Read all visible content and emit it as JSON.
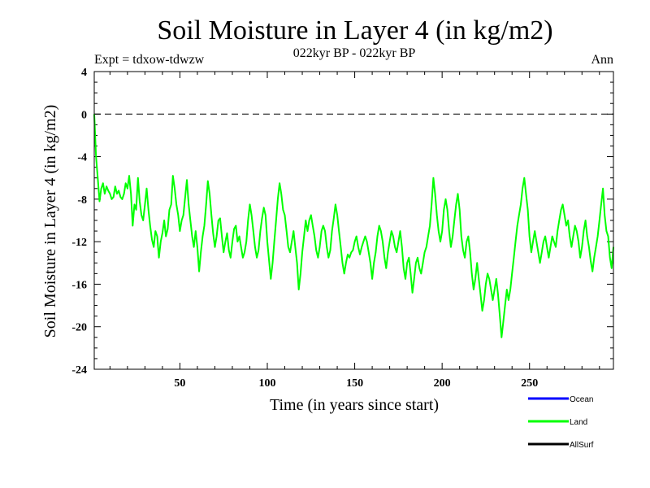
{
  "chart_data": {
    "type": "line",
    "title": "Soil Moisture in Layer 4 (in kg/m2)",
    "subtitle": "022kyr BP - 022kyr BP",
    "experiment_label": "Expt = tdxow-tdwzw",
    "period_label": "Ann",
    "xlabel": "Time (in years since start)",
    "ylabel": "Soil Moisture in Layer 4 (in kg/m2)",
    "xlim": [
      1,
      298
    ],
    "ylim": [
      -24,
      4
    ],
    "x_ticks": [
      50,
      100,
      150,
      200,
      250
    ],
    "y_ticks": [
      4,
      0,
      -4,
      -8,
      -12,
      -16,
      -20,
      -24
    ],
    "reference_line": {
      "y": 0,
      "style": "dashed"
    },
    "legend": [
      {
        "name": "Ocean",
        "color": "#0000ff"
      },
      {
        "name": "Land",
        "color": "#00ff00"
      },
      {
        "name": "AllSurf",
        "color": "#000000"
      }
    ],
    "legend_placement": "bottom-right",
    "series": [
      {
        "name": "Land",
        "color": "#00ff00",
        "x": [
          1,
          2,
          3,
          4,
          5,
          6,
          7,
          8,
          9,
          10,
          11,
          12,
          13,
          14,
          15,
          16,
          17,
          18,
          19,
          20,
          21,
          22,
          23,
          24,
          25,
          26,
          27,
          28,
          29,
          30,
          31,
          32,
          33,
          34,
          35,
          36,
          37,
          38,
          39,
          40,
          41,
          42,
          43,
          44,
          45,
          46,
          47,
          48,
          49,
          50,
          51,
          52,
          53,
          54,
          55,
          56,
          57,
          58,
          59,
          60,
          61,
          62,
          63,
          64,
          65,
          66,
          67,
          68,
          69,
          70,
          71,
          72,
          73,
          74,
          75,
          76,
          77,
          78,
          79,
          80,
          81,
          82,
          83,
          84,
          85,
          86,
          87,
          88,
          89,
          90,
          91,
          92,
          93,
          94,
          95,
          96,
          97,
          98,
          99,
          100,
          101,
          102,
          103,
          104,
          105,
          106,
          107,
          108,
          109,
          110,
          111,
          112,
          113,
          114,
          115,
          116,
          117,
          118,
          119,
          120,
          121,
          122,
          123,
          124,
          125,
          126,
          127,
          128,
          129,
          130,
          131,
          132,
          133,
          134,
          135,
          136,
          137,
          138,
          139,
          140,
          141,
          142,
          143,
          144,
          145,
          146,
          147,
          148,
          149,
          150,
          151,
          152,
          153,
          154,
          155,
          156,
          157,
          158,
          159,
          160,
          161,
          162,
          163,
          164,
          165,
          166,
          167,
          168,
          169,
          170,
          171,
          172,
          173,
          174,
          175,
          176,
          177,
          178,
          179,
          180,
          181,
          182,
          183,
          184,
          185,
          186,
          187,
          188,
          189,
          190,
          191,
          192,
          193,
          194,
          195,
          196,
          197,
          198,
          199,
          200,
          201,
          202,
          203,
          204,
          205,
          206,
          207,
          208,
          209,
          210,
          211,
          212,
          213,
          214,
          215,
          216,
          217,
          218,
          219,
          220,
          221,
          222,
          223,
          224,
          225,
          226,
          227,
          228,
          229,
          230,
          231,
          232,
          233,
          234,
          235,
          236,
          237,
          238,
          239,
          240,
          241,
          242,
          243,
          244,
          245,
          246,
          247,
          248,
          249,
          250,
          251,
          252,
          253,
          254,
          255,
          256,
          257,
          258,
          259,
          260,
          261,
          262,
          263,
          264,
          265,
          266,
          267,
          268,
          269,
          270,
          271,
          272,
          273,
          274,
          275,
          276,
          277,
          278,
          279,
          280,
          281,
          282,
          283,
          284,
          285,
          286,
          287,
          288,
          289,
          290,
          291,
          292,
          293,
          294,
          295,
          296,
          297,
          298
        ],
        "y": [
          0.0,
          -4.0,
          -6.0,
          -8.2,
          -7.0,
          -6.5,
          -7.5,
          -6.8,
          -7.2,
          -7.5,
          -8.0,
          -7.8,
          -6.8,
          -7.5,
          -7.2,
          -7.8,
          -8.0,
          -7.5,
          -6.5,
          -7.0,
          -5.8,
          -7.5,
          -10.5,
          -8.5,
          -9.0,
          -6.0,
          -8.2,
          -9.5,
          -10.0,
          -8.5,
          -7.0,
          -9.0,
          -10.5,
          -11.8,
          -12.5,
          -11.0,
          -11.5,
          -13.5,
          -12.0,
          -11.2,
          -10.0,
          -11.5,
          -10.8,
          -9.0,
          -8.5,
          -5.8,
          -7.0,
          -8.5,
          -9.5,
          -11.0,
          -10.0,
          -9.5,
          -7.8,
          -6.2,
          -8.5,
          -10.0,
          -11.5,
          -12.5,
          -11.0,
          -12.5,
          -14.8,
          -13.0,
          -11.5,
          -10.5,
          -8.5,
          -6.3,
          -7.5,
          -9.5,
          -11.2,
          -12.5,
          -11.5,
          -10.0,
          -9.8,
          -11.5,
          -13.0,
          -12.0,
          -11.2,
          -12.8,
          -13.5,
          -12.0,
          -10.8,
          -10.5,
          -12.0,
          -11.5,
          -12.5,
          -13.5,
          -13.0,
          -12.0,
          -10.0,
          -8.5,
          -9.5,
          -11.0,
          -12.5,
          -13.5,
          -12.8,
          -11.0,
          -9.8,
          -8.8,
          -9.5,
          -12.0,
          -13.8,
          -15.5,
          -14.0,
          -12.0,
          -10.0,
          -8.0,
          -6.5,
          -7.5,
          -9.0,
          -9.5,
          -11.0,
          -12.5,
          -13.0,
          -12.0,
          -11.0,
          -12.5,
          -14.0,
          -16.5,
          -15.0,
          -13.0,
          -11.5,
          -10.0,
          -11.0,
          -10.0,
          -9.5,
          -10.5,
          -11.5,
          -12.8,
          -13.5,
          -12.5,
          -11.0,
          -10.5,
          -11.0,
          -12.5,
          -13.5,
          -12.8,
          -11.0,
          -9.8,
          -8.5,
          -9.5,
          -11.0,
          -12.5,
          -14.0,
          -15.0,
          -14.0,
          -13.2,
          -13.5,
          -13.0,
          -12.8,
          -12.0,
          -11.5,
          -12.5,
          -13.2,
          -12.5,
          -12.0,
          -11.5,
          -12.0,
          -13.0,
          -14.0,
          -15.5,
          -14.0,
          -13.0,
          -11.5,
          -10.5,
          -11.0,
          -12.0,
          -13.5,
          -14.5,
          -13.0,
          -12.0,
          -11.0,
          -11.5,
          -12.5,
          -13.0,
          -12.0,
          -11.0,
          -12.5,
          -14.5,
          -15.5,
          -14.0,
          -13.5,
          -15.0,
          -16.8,
          -15.5,
          -14.0,
          -13.5,
          -14.5,
          -15.0,
          -14.0,
          -13.0,
          -12.5,
          -11.5,
          -10.5,
          -8.5,
          -6.0,
          -7.5,
          -9.5,
          -11.0,
          -12.0,
          -11.0,
          -9.0,
          -8.0,
          -9.0,
          -11.0,
          -12.5,
          -11.5,
          -10.0,
          -8.5,
          -7.5,
          -9.0,
          -11.5,
          -12.8,
          -13.5,
          -12.0,
          -11.5,
          -13.0,
          -15.0,
          -16.5,
          -15.5,
          -14.0,
          -15.5,
          -17.0,
          -18.5,
          -17.5,
          -16.0,
          -15.0,
          -15.5,
          -16.5,
          -17.5,
          -16.5,
          -15.5,
          -17.0,
          -19.0,
          -21.0,
          -19.5,
          -18.0,
          -16.5,
          -17.5,
          -16.5,
          -15.0,
          -13.5,
          -12.0,
          -10.5,
          -9.5,
          -8.5,
          -7.0,
          -6.0,
          -7.5,
          -9.0,
          -11.5,
          -13.0,
          -12.0,
          -11.0,
          -12.0,
          -13.0,
          -14.0,
          -13.0,
          -12.0,
          -11.5,
          -12.5,
          -13.5,
          -12.5,
          -11.5,
          -12.0,
          -12.5,
          -11.0,
          -10.0,
          -9.0,
          -8.5,
          -9.5,
          -10.5,
          -10.0,
          -11.5,
          -12.5,
          -11.5,
          -10.5,
          -11.0,
          -12.0,
          -13.5,
          -12.5,
          -11.0,
          -10.0,
          -11.5,
          -12.5,
          -13.8,
          -14.8,
          -13.5,
          -12.5,
          -11.5,
          -10.0,
          -8.5,
          -7.0,
          -9.5,
          -11.0,
          -11.5,
          -13.5,
          -14.5,
          -12.5
        ]
      }
    ]
  }
}
